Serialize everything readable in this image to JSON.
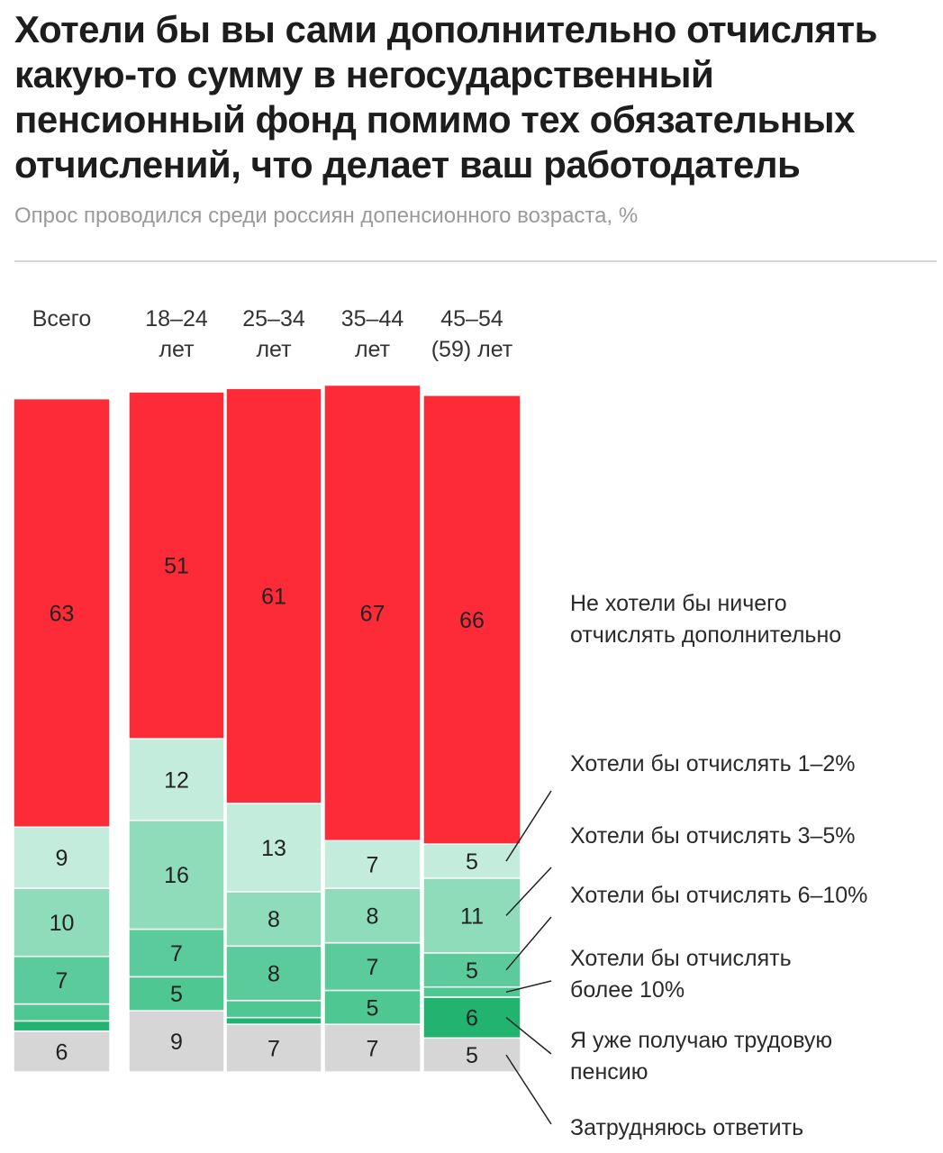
{
  "title": "Хотели бы вы сами дополнительно отчислять какую-то сумму в негосударственный пенсионный фонд помимо тех обязательных отчислений, что делает ваш работодатель",
  "subtitle": "Опрос проводился среди россиян допенсионного возраста, %",
  "chart_data": {
    "type": "bar",
    "stacked": true,
    "percent_stacked": true,
    "categories": [
      [
        "Всего"
      ],
      [
        "18–24",
        "лет"
      ],
      [
        "25–34",
        "лет"
      ],
      [
        "35–44",
        "лет"
      ],
      [
        "45–54",
        "(59) лет"
      ]
    ],
    "series": [
      {
        "name": "Затрудняюсь ответить",
        "color": "#d6d6d6",
        "values": [
          6,
          9,
          7,
          7,
          5
        ],
        "labels": [
          "6",
          "9",
          "7",
          "7",
          "5"
        ]
      },
      {
        "name": "Я уже получаю трудовую пенсию",
        "color": "#23b371",
        "values": [
          1.5,
          0,
          1,
          0,
          6
        ],
        "labels": [
          "",
          "",
          "",
          "",
          "6"
        ]
      },
      {
        "name": "Хотели бы отчислять более 10%",
        "color": "#4ec793",
        "values": [
          2.5,
          5,
          2.5,
          5,
          1.5
        ],
        "labels": [
          "",
          "5",
          "",
          "5",
          ""
        ]
      },
      {
        "name": "Хотели бы отчислять 6–10%",
        "color": "#5ccb9b",
        "values": [
          7,
          7,
          8,
          7,
          5
        ],
        "labels": [
          "7",
          "7",
          "8",
          "7",
          "5"
        ]
      },
      {
        "name": "Хотели бы отчислять 3–5%",
        "color": "#8edcba",
        "values": [
          10,
          16,
          8,
          8,
          11
        ],
        "labels": [
          "10",
          "16",
          "8",
          "8",
          "11"
        ]
      },
      {
        "name": "Хотели бы отчислять 1–2%",
        "color": "#c4ecdc",
        "values": [
          9,
          12,
          13,
          7,
          5
        ],
        "labels": [
          "9",
          "12",
          "13",
          "7",
          "5"
        ]
      },
      {
        "name": "Не хотели бы ничего отчислять дополнительно",
        "color": "#fd2b37",
        "values": [
          63,
          51,
          61,
          67,
          66
        ],
        "labels": [
          "63",
          "51",
          "61",
          "67",
          "66"
        ]
      }
    ],
    "legend": [
      [
        "Не хотели бы ничего",
        "отчислять дополнительно"
      ],
      [
        "Хотели бы отчислять 1–2%"
      ],
      [
        "Хотели бы отчислять 3–5%"
      ],
      [
        "Хотели бы отчислять 6–10%"
      ],
      [
        "Хотели бы отчислять",
        "более 10%"
      ],
      [
        "Я уже получаю трудовую",
        "пенсию"
      ],
      [
        "Затрудняюсь ответить"
      ]
    ],
    "legend_placement": "right",
    "grid": false
  }
}
